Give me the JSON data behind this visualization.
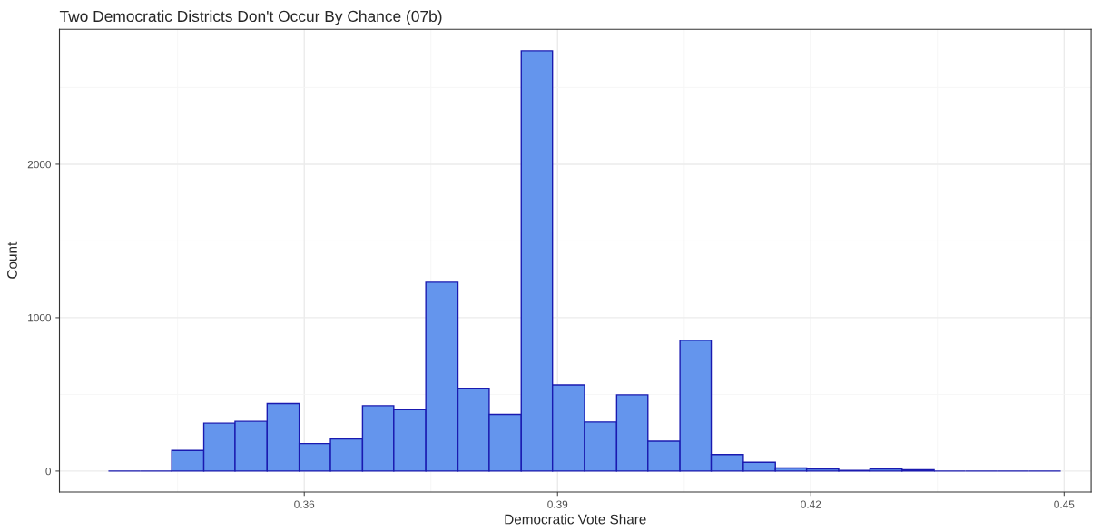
{
  "chart_data": {
    "type": "histogram",
    "title": "Two Democratic Districts Don't Occur By Chance (07b)",
    "xlabel": "Democratic Vote Share",
    "ylabel": "Count",
    "bins": [
      0.3368,
      0.3406,
      0.3443,
      0.3481,
      0.3518,
      0.3556,
      0.3594,
      0.3631,
      0.3669,
      0.3706,
      0.3744,
      0.3782,
      0.3819,
      0.3857,
      0.3894,
      0.3932,
      0.397,
      0.4007,
      0.4045,
      0.4082,
      0.412,
      0.4158,
      0.4195,
      0.4233,
      0.427,
      0.4308,
      0.4346,
      0.4383,
      0.4421,
      0.4458,
      0.4496
    ],
    "values": [
      0,
      0,
      134,
      312,
      324,
      440,
      179,
      209,
      426,
      400,
      1231,
      540,
      369,
      2740,
      562,
      320,
      497,
      195,
      852,
      107,
      57,
      20,
      14,
      4,
      14,
      8,
      0,
      0,
      0,
      0
    ],
    "colors": [
      "#1a1ab0",
      "#1a1ab0",
      "#6495ed",
      "#6495ed",
      "#6495ed",
      "#6495ed",
      "#6495ed",
      "#6495ed",
      "#6495ed",
      "#6495ed",
      "#6495ed",
      "#6495ed",
      "#6495ed",
      "#6495ed",
      "#6495ed",
      "#6495ed",
      "#6495ed",
      "#6495ed",
      "#6495ed",
      "#6495ed",
      "#6495ed",
      "#6495ed",
      "#6495ed",
      "#6495ed",
      "#6495ed",
      "#6495ed",
      "#1a1ab0",
      "#1a1ab0",
      "#1a1ab0",
      "#1a1ab0"
    ],
    "xlim": [
      0.331,
      0.4532
    ],
    "xticks": [
      0.36,
      0.39,
      0.42,
      0.45
    ],
    "ylim": [
      -137,
      2880
    ],
    "yticks": [
      0,
      1000,
      2000
    ],
    "grid": true
  }
}
